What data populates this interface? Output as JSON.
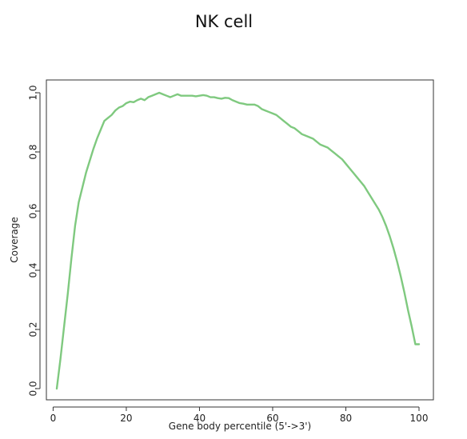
{
  "chart_data": {
    "type": "line",
    "title": "NK cell",
    "xlabel": "Gene body percentile (5'->3')",
    "ylabel": "Coverage",
    "xlim": [
      1,
      100
    ],
    "ylim": [
      0,
      1.0
    ],
    "xticks": [
      0,
      20,
      40,
      60,
      80,
      100
    ],
    "xtick_labels": [
      "0",
      "20",
      "40",
      "60",
      "80",
      "100"
    ],
    "yticks": [
      0.0,
      0.2,
      0.4,
      0.6,
      0.8,
      1.0
    ],
    "ytick_labels": [
      "0.0",
      "0.2",
      "0.4",
      "0.6",
      "0.8",
      "1.0"
    ],
    "grid": false,
    "legend": "none",
    "line_color": "#7FC97F",
    "series": [
      {
        "x": [
          1,
          2,
          3,
          4,
          5,
          6,
          7,
          8,
          9,
          10,
          11,
          12,
          13,
          14,
          15,
          16,
          17,
          18,
          19,
          20,
          21,
          22,
          23,
          24,
          25,
          26,
          27,
          28,
          29,
          30,
          31,
          32,
          33,
          34,
          35,
          36,
          37,
          38,
          39,
          40,
          41,
          42,
          43,
          44,
          45,
          46,
          47,
          48,
          49,
          50,
          51,
          52,
          53,
          54,
          55,
          56,
          57,
          58,
          59,
          60,
          61,
          62,
          63,
          64,
          65,
          66,
          67,
          68,
          69,
          70,
          71,
          72,
          73,
          74,
          75,
          76,
          77,
          78,
          79,
          80,
          81,
          82,
          83,
          84,
          85,
          86,
          87,
          88,
          89,
          90,
          91,
          92,
          93,
          94,
          95,
          96,
          97,
          98,
          99,
          100
        ],
        "values": [
          0.0,
          0.1,
          0.21,
          0.32,
          0.44,
          0.55,
          0.63,
          0.68,
          0.73,
          0.77,
          0.81,
          0.845,
          0.875,
          0.905,
          0.915,
          0.925,
          0.94,
          0.95,
          0.955,
          0.965,
          0.97,
          0.968,
          0.975,
          0.98,
          0.975,
          0.985,
          0.99,
          0.995,
          1.0,
          0.995,
          0.99,
          0.985,
          0.99,
          0.995,
          0.99,
          0.99,
          0.99,
          0.99,
          0.988,
          0.99,
          0.992,
          0.99,
          0.985,
          0.985,
          0.982,
          0.98,
          0.983,
          0.982,
          0.975,
          0.97,
          0.965,
          0.963,
          0.96,
          0.96,
          0.96,
          0.955,
          0.945,
          0.94,
          0.935,
          0.93,
          0.925,
          0.915,
          0.905,
          0.895,
          0.885,
          0.88,
          0.87,
          0.86,
          0.855,
          0.85,
          0.845,
          0.835,
          0.825,
          0.82,
          0.815,
          0.805,
          0.795,
          0.785,
          0.775,
          0.76,
          0.745,
          0.73,
          0.715,
          0.7,
          0.685,
          0.665,
          0.645,
          0.625,
          0.605,
          0.58,
          0.55,
          0.515,
          0.475,
          0.43,
          0.38,
          0.325,
          0.265,
          0.21,
          0.15,
          0.15
        ]
      }
    ]
  }
}
